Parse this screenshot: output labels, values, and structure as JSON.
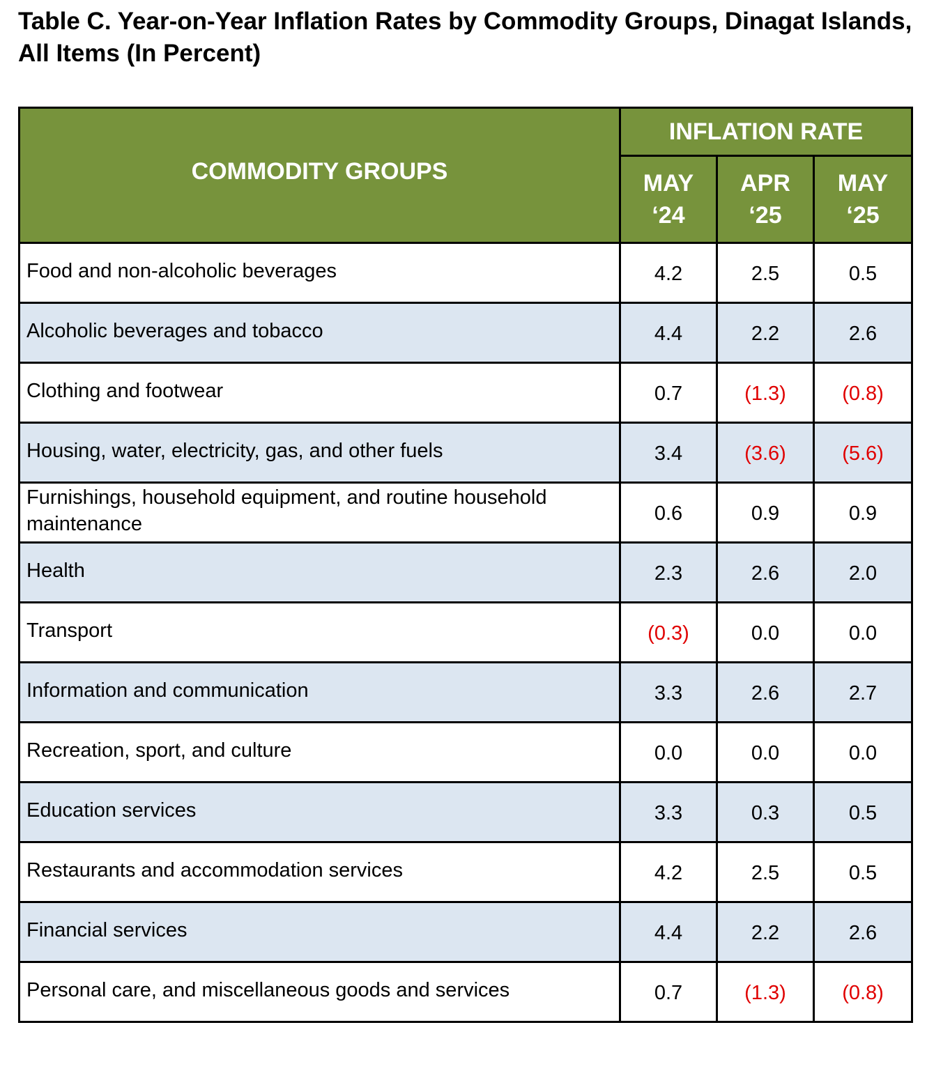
{
  "title": "Table C. Year-on-Year Inflation Rates by Commodity Groups, Dinagat Islands, All Items (In Percent)",
  "colors": {
    "header_bg": "#77933c",
    "header_text": "#ffffff",
    "alt_row_bg": "#dce6f1",
    "negative_text": "#e00000",
    "border": "#000000"
  },
  "header": {
    "commodity_groups": "COMMODITY GROUPS",
    "inflation_rate": "INFLATION RATE",
    "periods": [
      {
        "line1": "MAY",
        "line2": "‘24"
      },
      {
        "line1": "APR",
        "line2": "‘25"
      },
      {
        "line1": "MAY",
        "line2": "‘25"
      }
    ]
  },
  "rows": [
    {
      "label": "Food and non-alcoholic beverages",
      "values": [
        "4.2",
        "2.5",
        "0.5"
      ]
    },
    {
      "label": "Alcoholic beverages and tobacco",
      "values": [
        "4.4",
        "2.2",
        "2.6"
      ]
    },
    {
      "label": "Clothing and footwear",
      "values": [
        "0.7",
        "(1.3)",
        "(0.8)"
      ]
    },
    {
      "label": "Housing, water, electricity, gas, and other fuels",
      "values": [
        "3.4",
        "(3.6)",
        "(5.6)"
      ]
    },
    {
      "label": "Furnishings, household equipment, and routine household maintenance",
      "values": [
        "0.6",
        "0.9",
        "0.9"
      ]
    },
    {
      "label": "Health",
      "values": [
        "2.3",
        "2.6",
        "2.0"
      ]
    },
    {
      "label": "Transport",
      "values": [
        "(0.3)",
        "0.0",
        "0.0"
      ]
    },
    {
      "label": "Information and communication",
      "values": [
        "3.3",
        "2.6",
        "2.7"
      ]
    },
    {
      "label": "Recreation, sport, and culture",
      "values": [
        "0.0",
        "0.0",
        "0.0"
      ]
    },
    {
      "label": "Education services",
      "values": [
        "3.3",
        "0.3",
        "0.5"
      ]
    },
    {
      "label": "Restaurants and accommodation services",
      "values": [
        "4.2",
        "2.5",
        "0.5"
      ]
    },
    {
      "label": "Financial services",
      "values": [
        "4.4",
        "2.2",
        "2.6"
      ]
    },
    {
      "label": "Personal care, and miscellaneous goods and services",
      "values": [
        "0.7",
        "(1.3)",
        "(0.8)"
      ]
    }
  ]
}
